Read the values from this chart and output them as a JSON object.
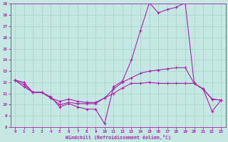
{
  "xlabel": "Windchill (Refroidissement éolien,°C)",
  "xlim": [
    -0.5,
    23.5
  ],
  "ylim": [
    8,
    19
  ],
  "xticks": [
    0,
    1,
    2,
    3,
    4,
    5,
    6,
    7,
    8,
    9,
    10,
    11,
    12,
    13,
    14,
    15,
    16,
    17,
    18,
    19,
    20,
    21,
    22,
    23
  ],
  "yticks": [
    8,
    9,
    10,
    11,
    12,
    13,
    14,
    15,
    16,
    17,
    18,
    19
  ],
  "bg_color": "#c5e8e5",
  "grid_color": "#aad0cc",
  "line_color": "#aa22aa",
  "series1_x": [
    0,
    1,
    2,
    3,
    4,
    5,
    6,
    7,
    8,
    9,
    10,
    11,
    12,
    13,
    14,
    15,
    16,
    17,
    18,
    19,
    20,
    21,
    22,
    23
  ],
  "series1_y": [
    12.2,
    12.0,
    11.1,
    11.1,
    10.7,
    9.8,
    10.1,
    9.8,
    9.6,
    9.6,
    8.3,
    11.6,
    12.1,
    14.0,
    16.6,
    19.1,
    18.2,
    18.5,
    18.7,
    19.1,
    11.9,
    11.4,
    9.4,
    10.4
  ],
  "series2_x": [
    0,
    1,
    2,
    3,
    4,
    5,
    6,
    7,
    8,
    9,
    10,
    11,
    12,
    13,
    14,
    15,
    16,
    17,
    18,
    19,
    20,
    21,
    22,
    23
  ],
  "series2_y": [
    12.2,
    11.8,
    11.1,
    11.1,
    10.6,
    10.0,
    10.2,
    10.1,
    10.1,
    10.1,
    10.6,
    11.4,
    12.0,
    12.4,
    12.8,
    13.0,
    13.1,
    13.2,
    13.3,
    13.3,
    11.9,
    11.4,
    10.5,
    10.4
  ],
  "series3_x": [
    0,
    1,
    2,
    3,
    4,
    5,
    6,
    7,
    8,
    9,
    10,
    11,
    12,
    13,
    14,
    15,
    16,
    17,
    18,
    19,
    20,
    21,
    22,
    23
  ],
  "series3_y": [
    12.2,
    11.6,
    11.1,
    11.1,
    10.6,
    10.3,
    10.5,
    10.3,
    10.2,
    10.2,
    10.6,
    11.0,
    11.5,
    11.9,
    11.9,
    12.0,
    11.9,
    11.9,
    11.9,
    11.9,
    11.9,
    11.4,
    10.5,
    10.4
  ]
}
